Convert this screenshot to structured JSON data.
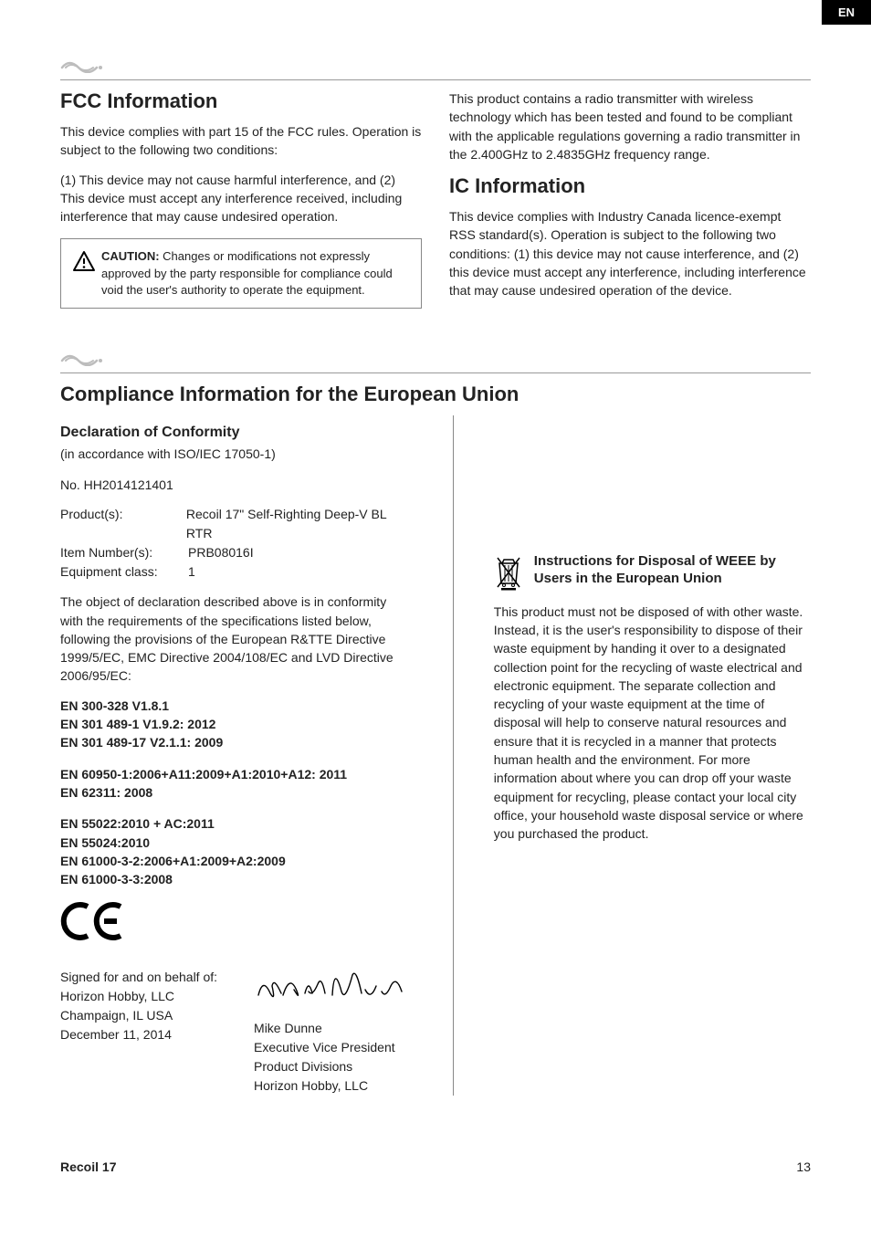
{
  "lang_tab": "EN",
  "section1": {
    "heading_fcc": "FCC Information",
    "fcc_p1": "This device complies with part 15 of the FCC rules. Operation is subject to the following two conditions:",
    "fcc_p2": "(1) This device may not cause harmful interference, and (2) This device must accept any interference received, including interference that may cause undesired operation.",
    "caution_label": "CAUTION:",
    "caution_text": " Changes or modifications not expressly approved by the party responsible for compliance could void the user's authority to operate the equipment.",
    "radio_p": "This product contains a radio transmitter with wireless technology which has been tested and found to be compliant with the applicable regulations governing a radio transmitter in the 2.400GHz to 2.4835GHz frequency range.",
    "heading_ic": "IC Information",
    "ic_p": "This device complies with Industry Canada licence-exempt RSS standard(s). Operation is subject to the following two conditions: (1) this device may not cause interference, and (2) this device must accept any interference, including interference that may cause undesired operation of the device."
  },
  "section2": {
    "heading_eu": "Compliance Information for the European Union",
    "heading_doc": "Declaration of Conformity",
    "doc_sub": "(in accordance with ISO/IEC 17050-1)",
    "doc_no": "No. HH2014121401",
    "product_rows": [
      {
        "label": "Product(s):",
        "value": "Recoil 17\" Self-Righting Deep-V BL RTR"
      },
      {
        "label": "Item Number(s):",
        "value": "PRB08016I"
      },
      {
        "label": "Equipment class:",
        "value": "1"
      }
    ],
    "conformity_p": "The object of declaration described above is in conformity with the requirements of the specifications listed below, following the provisions of the European R&TTE Directive 1999/5/EC, EMC Directive 2004/108/EC and LVD Directive 2006/95/EC:",
    "standards_block1": "EN 300-328 V1.8.1\nEN 301 489-1 V1.9.2: 2012\nEN 301 489-17 V2.1.1: 2009",
    "standards_block2": "EN 60950-1:2006+A11:2009+A1:2010+A12: 2011\nEN 62311: 2008",
    "standards_block3": "EN 55022:2010 + AC:2011\nEN 55024:2010\nEN 61000-3-2:2006+A1:2009+A2:2009\nEN 61000-3-3:2008",
    "signed_for": "Signed for and on behalf of:\nHorizon Hobby, LLC\nChampaign, IL USA\nDecember 11, 2014",
    "signer": "Mike Dunne\nExecutive Vice President\nProduct Divisions\nHorizon Hobby, LLC",
    "weee_title": "Instructions for Disposal of WEEE by Users in the European Union",
    "weee_p": "This product must not be disposed of with other waste. Instead, it is the user's responsibility to dispose of their waste equipment by handing it over to a designated collection point for the recycling of waste electrical and electronic equipment. The separate collection and recycling of your waste equipment at the time of disposal will help to conserve natural resources and ensure that it is recycled in a manner that protects human health and the environment. For more information about where you can drop off your waste equipment for recycling, please contact your local city office, your household waste disposal service or where you purchased the product."
  },
  "footer": {
    "title": "Recoil 17",
    "page": "13"
  },
  "colors": {
    "text": "#222222",
    "divider": "#999999",
    "lang_bg": "#000000",
    "wave": "#bdbdbd",
    "icon": "#333333"
  }
}
